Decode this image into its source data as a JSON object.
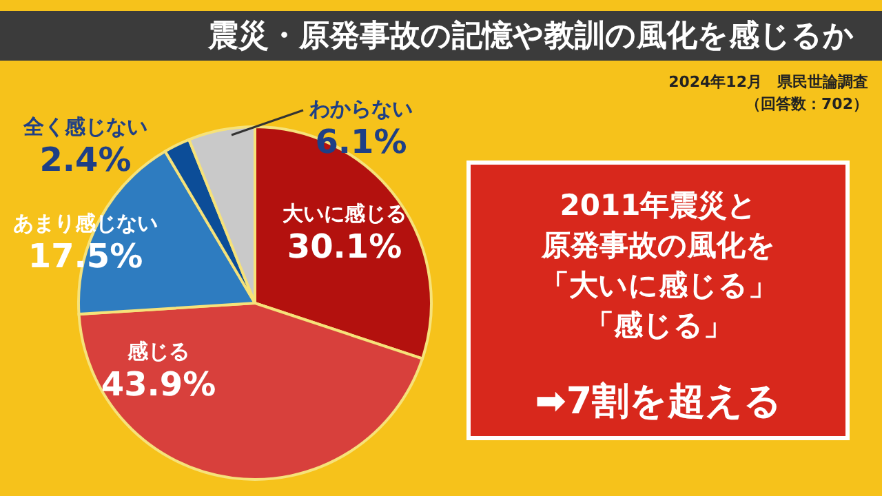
{
  "chart_data": {
    "type": "pie",
    "title": "震災・原発事故の記憶や教訓の風化を感じるか",
    "subtitle": "2024年12月　県民世論調査",
    "categories": [
      "大いに感じる",
      "感じる",
      "あまり感じない",
      "全く感じない",
      "わからない"
    ],
    "values": [
      30.1,
      43.9,
      17.5,
      2.4,
      6.1
    ],
    "value_labels": [
      "30.1%",
      "43.9%",
      "17.5%",
      "2.4%",
      "6.1%"
    ],
    "colors": [
      "#b3110e",
      "#d8403c",
      "#2e7cc0",
      "#0c4d98",
      "#c9c9c9"
    ],
    "annotations": [
      "（回答数：702）",
      "2011年震災と",
      "原発事故の風化を",
      "「大いに感じる」",
      "「感じる」",
      "➡7割を超える"
    ]
  }
}
